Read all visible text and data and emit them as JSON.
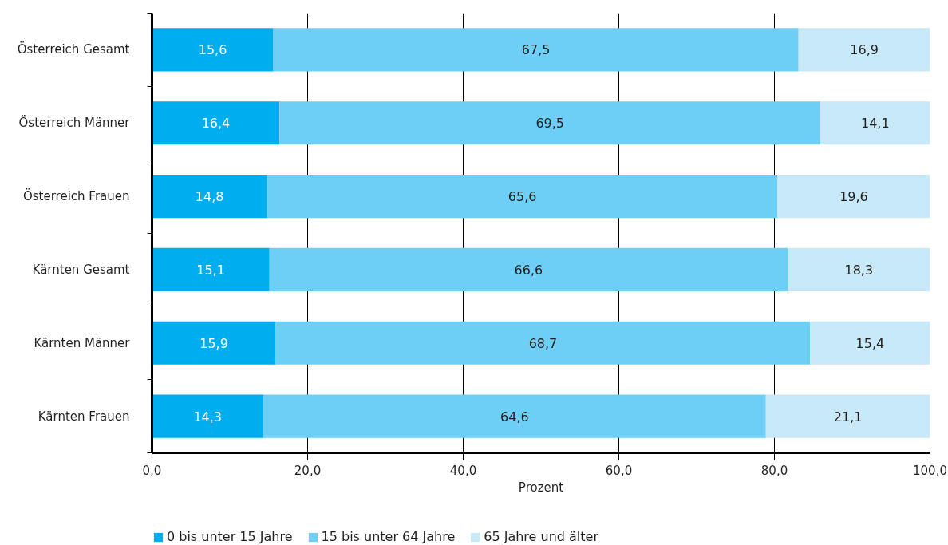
{
  "chart_data": {
    "type": "bar",
    "orientation": "horizontal",
    "stacked": true,
    "xlabel": "Prozent",
    "categories": [
      "Österreich Gesamt",
      "Österreich Männer",
      "Österreich Frauen",
      "Kärnten Gesamt",
      "Kärnten Männer",
      "Kärnten Frauen"
    ],
    "series": [
      {
        "name": "0 bis unter 15 Jahre",
        "color": "#00aeef",
        "values": [
          15.6,
          16.4,
          14.8,
          15.1,
          15.9,
          14.3
        ],
        "value_labels": [
          "15,6",
          "16,4",
          "14,8",
          "15,1",
          "15,9",
          "14,3"
        ]
      },
      {
        "name": "15 bis unter 64 Jahre",
        "color": "#6dcff6",
        "values": [
          67.5,
          69.5,
          65.6,
          66.6,
          68.7,
          64.6
        ],
        "value_labels": [
          "67,5",
          "69,5",
          "65,6",
          "66,6",
          "68,7",
          "64,6"
        ]
      },
      {
        "name": "65 Jahre und älter",
        "color": "#c8e9f8",
        "values": [
          16.9,
          14.1,
          19.6,
          18.3,
          15.4,
          21.1
        ],
        "value_labels": [
          "16,9",
          "14,1",
          "19,6",
          "18,3",
          "15,4",
          "21,1"
        ]
      }
    ],
    "xlim": [
      0,
      100
    ],
    "xticks": [
      {
        "value": 0,
        "label": "0,0"
      },
      {
        "value": 20,
        "label": "20,0"
      },
      {
        "value": 40,
        "label": "40,0"
      },
      {
        "value": 60,
        "label": "60,0"
      },
      {
        "value": 80,
        "label": "80,0"
      },
      {
        "value": 100,
        "label": "100,0"
      }
    ],
    "grid": "x",
    "legend": "bottom"
  }
}
